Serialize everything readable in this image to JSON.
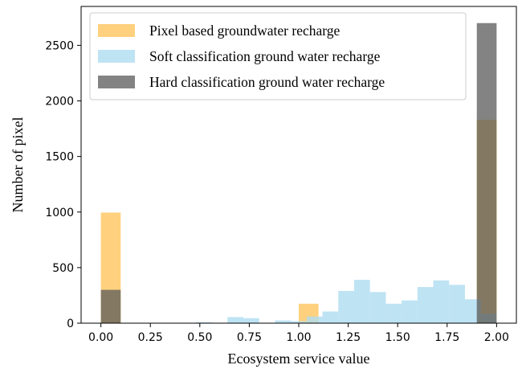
{
  "chart_data": {
    "type": "bar",
    "subtype": "overlaid-histogram",
    "xlabel": "Ecosystem service value",
    "ylabel": "Number of pixel",
    "xlim": [
      -0.1,
      2.1
    ],
    "ylim": [
      0,
      2850
    ],
    "xticks": [
      "0.00",
      "0.25",
      "0.50",
      "0.75",
      "1.00",
      "1.25",
      "1.50",
      "1.75",
      "2.00"
    ],
    "xtick_values": [
      0,
      0.25,
      0.5,
      0.75,
      1.0,
      1.25,
      1.5,
      1.75,
      2.0
    ],
    "yticks": [
      "0",
      "500",
      "1000",
      "1500",
      "2000",
      "2500"
    ],
    "ytick_values": [
      0,
      500,
      1000,
      1500,
      2000,
      2500
    ],
    "grid": false,
    "legend_position": "top-right",
    "series": [
      {
        "name": "Pixel based groundwater recharge",
        "color": "#ffc65e",
        "opacity": 0.8,
        "bin_width": 0.1,
        "bins": [
          {
            "x0": 0.0,
            "value": 995
          },
          {
            "x0": 1.0,
            "value": 175
          },
          {
            "x0": 1.9,
            "value": 1830
          }
        ]
      },
      {
        "name": "Soft classification ground water recharge",
        "color": "#aedcf0",
        "opacity": 0.8,
        "bin_width": 0.08,
        "bins": [
          {
            "x0": 0.48,
            "value": 8
          },
          {
            "x0": 0.64,
            "value": 55
          },
          {
            "x0": 0.72,
            "value": 45
          },
          {
            "x0": 0.88,
            "value": 25
          },
          {
            "x0": 0.96,
            "value": 18
          },
          {
            "x0": 1.04,
            "value": 60
          },
          {
            "x0": 1.12,
            "value": 105
          },
          {
            "x0": 1.2,
            "value": 290
          },
          {
            "x0": 1.28,
            "value": 390
          },
          {
            "x0": 1.36,
            "value": 280
          },
          {
            "x0": 1.44,
            "value": 175
          },
          {
            "x0": 1.52,
            "value": 205
          },
          {
            "x0": 1.6,
            "value": 325
          },
          {
            "x0": 1.68,
            "value": 385
          },
          {
            "x0": 1.76,
            "value": 345
          },
          {
            "x0": 1.84,
            "value": 215
          },
          {
            "x0": 1.92,
            "value": 85
          }
        ]
      },
      {
        "name": "Hard classification ground water recharge",
        "color": "#595959",
        "opacity": 0.75,
        "bin_width": 0.1,
        "bins": [
          {
            "x0": 0.0,
            "value": 300
          },
          {
            "x0": 1.9,
            "value": 2700
          }
        ]
      }
    ]
  }
}
